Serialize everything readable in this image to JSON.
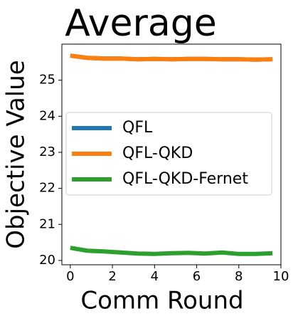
{
  "chart_data": {
    "type": "line",
    "title": "Average",
    "xlabel": "Comm Round",
    "ylabel": "Objective Value",
    "x": [
      0,
      0.8,
      1.6,
      2.4,
      3.2,
      4.0,
      4.8,
      5.6,
      6.4,
      7.2,
      8.0,
      8.8,
      9.6
    ],
    "series": [
      {
        "name": "QFL",
        "color": "#1f77b4",
        "values": [
          25.68,
          25.62,
          25.6,
          25.6,
          25.58,
          25.59,
          25.58,
          25.59,
          25.59,
          25.58,
          25.58,
          25.57,
          25.58
        ]
      },
      {
        "name": "QFL-QKD",
        "color": "#ff7f0e",
        "values": [
          25.68,
          25.62,
          25.6,
          25.6,
          25.58,
          25.59,
          25.58,
          25.59,
          25.59,
          25.58,
          25.58,
          25.57,
          25.58
        ]
      },
      {
        "name": "QFL-QKD-Fernet",
        "color": "#2ca02c",
        "values": [
          20.35,
          20.27,
          20.25,
          20.22,
          20.19,
          20.18,
          20.2,
          20.21,
          20.19,
          20.22,
          20.18,
          20.18,
          20.2
        ]
      }
    ],
    "xlim": [
      -0.4,
      10
    ],
    "xticks": [
      0,
      2,
      4,
      6,
      8,
      10
    ],
    "ylim": [
      19.88,
      26.0
    ],
    "yticks": [
      20,
      21,
      22,
      23,
      24,
      25
    ],
    "legend": "center left"
  }
}
